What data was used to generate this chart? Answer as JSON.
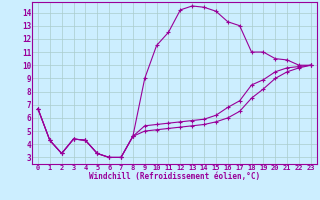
{
  "xlabel": "Windchill (Refroidissement éolien,°C)",
  "bg_color": "#cceeff",
  "line_color": "#990099",
  "grid_color": "#aacccc",
  "text_color": "#990099",
  "xlim": [
    -0.5,
    23.5
  ],
  "ylim": [
    2.5,
    14.8
  ],
  "xticks": [
    0,
    1,
    2,
    3,
    4,
    5,
    6,
    7,
    8,
    9,
    10,
    11,
    12,
    13,
    14,
    15,
    16,
    17,
    18,
    19,
    20,
    21,
    22,
    23
  ],
  "yticks": [
    3,
    4,
    5,
    6,
    7,
    8,
    9,
    10,
    11,
    12,
    13,
    14
  ],
  "line1_x": [
    0,
    1,
    2,
    3,
    4,
    5,
    6,
    7,
    8,
    9,
    10,
    11,
    12,
    13,
    14,
    15,
    16,
    17,
    18,
    19,
    20,
    21,
    22,
    23
  ],
  "line1_y": [
    6.7,
    4.3,
    3.3,
    4.4,
    4.3,
    3.3,
    3.0,
    3.0,
    4.6,
    9.0,
    11.5,
    12.5,
    14.2,
    14.5,
    14.4,
    14.1,
    13.3,
    13.0,
    11.0,
    11.0,
    10.5,
    10.4,
    10.0,
    10.0
  ],
  "line2_x": [
    0,
    1,
    2,
    3,
    4,
    5,
    6,
    7,
    8,
    9,
    10,
    11,
    12,
    13,
    14,
    15,
    16,
    17,
    18,
    19,
    20,
    21,
    22,
    23
  ],
  "line2_y": [
    6.7,
    4.3,
    3.3,
    4.4,
    4.3,
    3.3,
    3.0,
    3.0,
    4.6,
    5.4,
    5.5,
    5.6,
    5.7,
    5.8,
    5.9,
    6.2,
    6.8,
    7.3,
    8.5,
    8.9,
    9.5,
    9.8,
    9.9,
    10.0
  ],
  "line3_x": [
    0,
    1,
    2,
    3,
    4,
    5,
    6,
    7,
    8,
    9,
    10,
    11,
    12,
    13,
    14,
    15,
    16,
    17,
    18,
    19,
    20,
    21,
    22,
    23
  ],
  "line3_y": [
    6.7,
    4.3,
    3.3,
    4.4,
    4.3,
    3.3,
    3.0,
    3.0,
    4.6,
    5.0,
    5.1,
    5.2,
    5.3,
    5.4,
    5.5,
    5.7,
    6.0,
    6.5,
    7.5,
    8.2,
    9.0,
    9.5,
    9.8,
    10.0
  ]
}
